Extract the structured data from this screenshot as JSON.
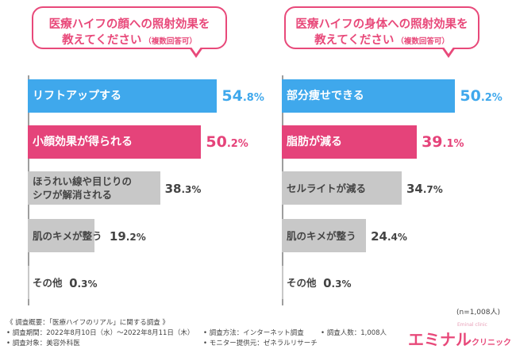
{
  "chart_data": [
    {
      "type": "bar",
      "orientation": "horizontal",
      "title": "医療ハイフの顔への照射効果を教えてください（複数回答可）",
      "title_line1": "医療ハイフの顔への照射効果を",
      "title_line2": "教えてください",
      "title_note": "（複数回答可）",
      "categories": [
        "リフトアップする",
        "小顔効果が得られる",
        "ほうれい線や目じりのシワが解消される",
        "肌のキメが整う",
        "その他"
      ],
      "label_lines": [
        [
          "リフトアップする"
        ],
        [
          "小顔効果が得られる"
        ],
        [
          "ほうれい線や目じりの",
          "シワが解消される"
        ],
        [
          "肌のキメが整う"
        ],
        [
          "その他"
        ]
      ],
      "values": [
        54.8,
        50.2,
        38.3,
        19.2,
        0.3
      ],
      "value_labels": [
        [
          "54",
          ".8",
          "%"
        ],
        [
          "50",
          ".2",
          "%"
        ],
        [
          "38",
          ".3",
          "%"
        ],
        [
          "19",
          ".2",
          "%"
        ],
        [
          "0",
          ".3",
          "%"
        ]
      ],
      "bar_colors": [
        "#3fa8ec",
        "#e5437a",
        "#c8c8c8",
        "#c8c8c8",
        "#c8c8c8"
      ],
      "xlim": [
        0,
        60
      ],
      "unit": "%"
    },
    {
      "type": "bar",
      "orientation": "horizontal",
      "title": "医療ハイフの身体への照射効果を教えてください（複数回答可）",
      "title_line1": "医療ハイフの身体への照射効果を",
      "title_line2": "教えてください",
      "title_note": "（複数回答可）",
      "categories": [
        "部分痩せできる",
        "脂肪が減る",
        "セルライトが減る",
        "肌のキメが整う",
        "その他"
      ],
      "label_lines": [
        [
          "部分痩せできる"
        ],
        [
          "脂肪が減る"
        ],
        [
          "セルライトが減る"
        ],
        [
          "肌のキメが整う"
        ],
        [
          "その他"
        ]
      ],
      "values": [
        50.2,
        39.1,
        34.7,
        24.4,
        0.3
      ],
      "value_labels": [
        [
          "50",
          ".2",
          "%"
        ],
        [
          "39",
          ".1",
          "%"
        ],
        [
          "34",
          ".7",
          "%"
        ],
        [
          "24",
          ".4",
          "%"
        ],
        [
          "0",
          ".3",
          "%"
        ]
      ],
      "bar_colors": [
        "#3fa8ec",
        "#e5437a",
        "#c8c8c8",
        "#c8c8c8",
        "#c8c8c8"
      ],
      "xlim": [
        0,
        60
      ],
      "unit": "%"
    }
  ],
  "sample_size": "(n=1,008人)",
  "footer": {
    "title": "《 調査概要：「医療ハイフのリアル」に関する調査 》",
    "period": "• 調査期間：2022年8月10日（水）〜2022年8月11日（木）",
    "method": "• 調査方法：インターネット調査",
    "count": "• 調査人数：1,008人",
    "target": "• 調査対象：美容外科医",
    "provider": "• モニター提供元：ゼネラルリサーチ"
  },
  "logo": {
    "main": "エミナル",
    "sub": "クリニック",
    "tagline": "Eminal clinic"
  },
  "colors": {
    "blue": "#3fa8ec",
    "pink": "#e5437a",
    "gray": "#c8c8c8",
    "accent": "#e8497a"
  }
}
